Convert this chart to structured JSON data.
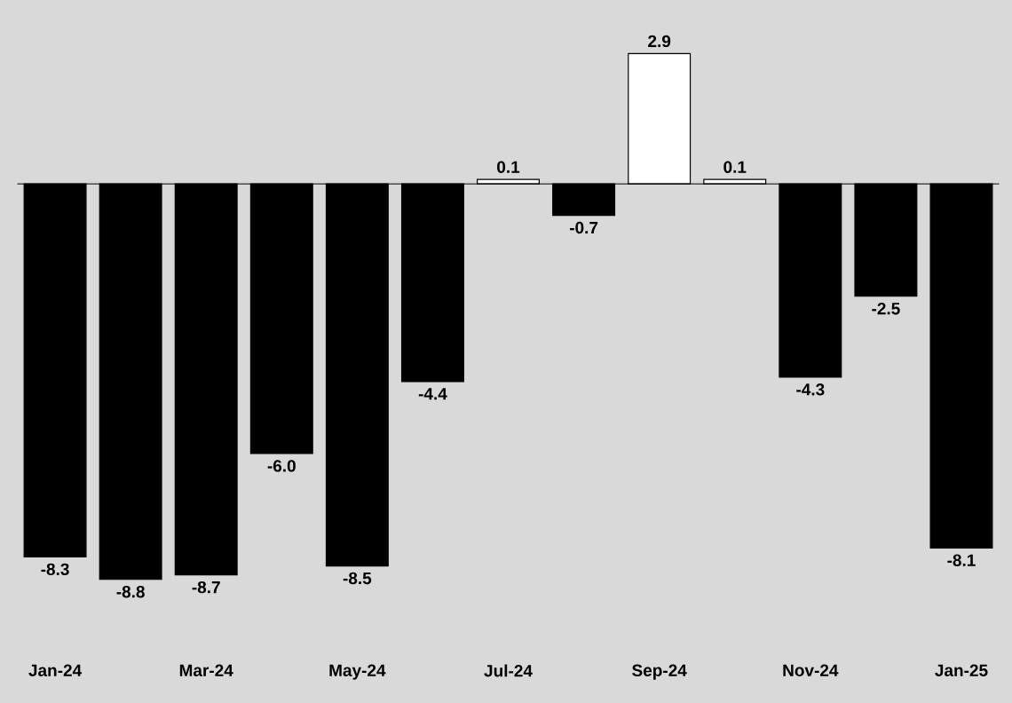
{
  "chart_data": {
    "type": "bar",
    "categories": [
      "Jan-24",
      null,
      "Mar-24",
      null,
      "May-24",
      null,
      "Jul-24",
      null,
      "Sep-24",
      null,
      "Nov-24",
      null,
      "Jan-25"
    ],
    "values": [
      -8.3,
      -8.8,
      -8.7,
      -6.0,
      -8.5,
      -4.4,
      0.1,
      -0.7,
      2.9,
      0.1,
      -4.3,
      -2.5,
      -8.1
    ],
    "colors": [
      "#000000",
      "#000000",
      "#000000",
      "#000000",
      "#000000",
      "#000000",
      "#ffffff",
      "#000000",
      "#ffffff",
      "#ffffff",
      "#000000",
      "#000000",
      "#000000"
    ],
    "value_labels": [
      "-8.3",
      "-8.8",
      "-8.7",
      "-6.0",
      "-8.5",
      "-4.4",
      "0.1",
      "-0.7",
      "2.9",
      "0.1",
      "-4.3",
      "-2.5",
      "-8.1"
    ]
  }
}
